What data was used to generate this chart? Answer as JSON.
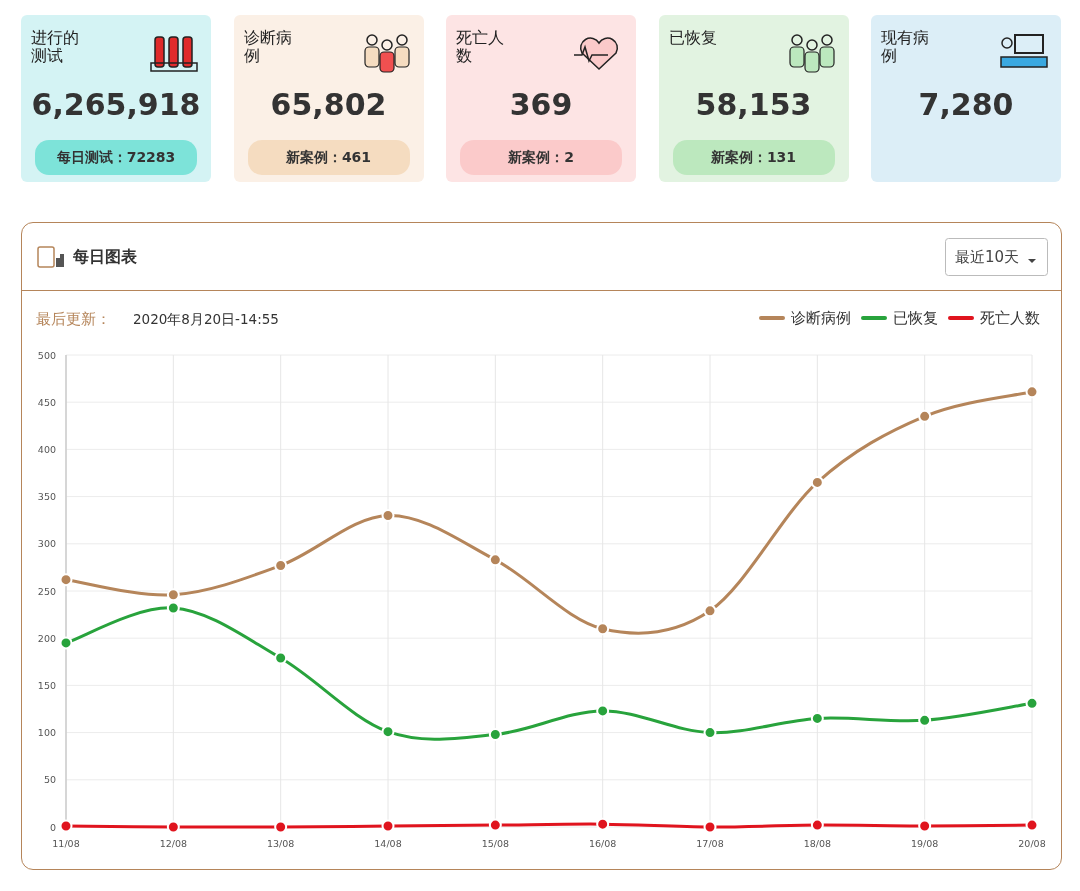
{
  "chart_data": [
    {
      "type": "other",
      "title": "进行的测试",
      "annotations": [
        "6,265,918",
        "每日测试：72283"
      ],
      "colors": [
        "#d4f3f4",
        "#7de3d9"
      ]
    },
    {
      "type": "other",
      "title": "诊断病例",
      "annotations": [
        "65,802",
        "新案例：461"
      ],
      "colors": [
        "#fbf0e6",
        "#f5dcc0"
      ]
    },
    {
      "type": "other",
      "title": "死亡人数",
      "annotations": [
        "369",
        "新案例：2"
      ],
      "colors": [
        "#fde4e4",
        "#fbcaca"
      ]
    },
    {
      "type": "other",
      "title": "已恢复",
      "annotations": [
        "58,153",
        "新案例：131"
      ],
      "colors": [
        "#e2f3e1",
        "#bce8be"
      ]
    },
    {
      "type": "other",
      "title": "现有病例",
      "annotations": [
        "7,280"
      ],
      "colors": [
        "#dceef7"
      ]
    },
    {
      "type": "line",
      "title": "每日图表",
      "annotations": [
        "最近10天",
        "最后更新：",
        "2020年8月20日-14:55"
      ],
      "categories": [
        "11/08",
        "12/08",
        "13/08",
        "14/08",
        "15/08",
        "16/08",
        "17/08",
        "18/08",
        "19/08",
        "20/08"
      ],
      "series": [
        {
          "name": "诊断病例",
          "color": "#b5855a",
          "values": [
            262,
            246,
            277,
            330,
            283,
            210,
            229,
            365,
            435,
            461
          ]
        },
        {
          "name": "已恢复",
          "color": "#28a33c",
          "values": [
            195,
            232,
            179,
            101,
            98,
            123,
            100,
            115,
            113,
            131
          ]
        },
        {
          "name": "死亡人数",
          "color": "#e0141e",
          "values": [
            1,
            0,
            0,
            1,
            2,
            3,
            0,
            2,
            1,
            2
          ]
        }
      ],
      "ylim": [
        0,
        500
      ],
      "yticks": [
        0,
        50,
        100,
        150,
        200,
        250,
        300,
        350,
        400,
        450,
        500
      ],
      "grid": true,
      "legend": "top right",
      "marker": "circle",
      "line_style": "solid"
    }
  ]
}
